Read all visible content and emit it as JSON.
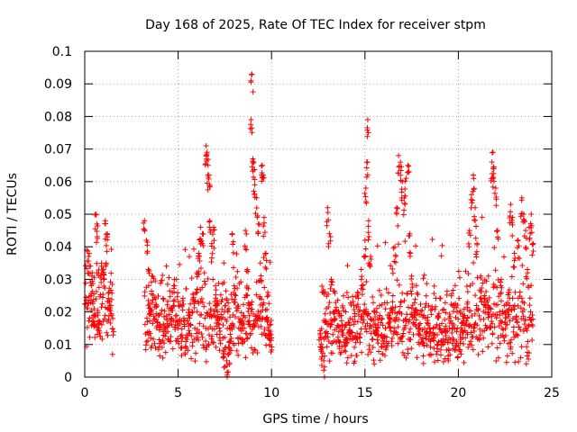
{
  "chart_data": {
    "type": "scatter",
    "title": "Day 168 of 2025, Rate Of TEC Index for receiver stpm",
    "xlabel": "GPS time / hours",
    "ylabel": "ROTI / TECUs",
    "xlim": [
      0,
      25
    ],
    "ylim": [
      0,
      0.1
    ],
    "x_ticks": [
      0,
      5,
      10,
      15,
      20,
      25
    ],
    "y_ticks": [
      0,
      0.01,
      0.02,
      0.03,
      0.04,
      0.05,
      0.06,
      0.07,
      0.08,
      0.09,
      0.1
    ],
    "grid": true,
    "marker": "+",
    "color": "#ff0000",
    "series": [
      {
        "name": "ROTI",
        "segments": [
          {
            "start": 0.0,
            "end": 1.5,
            "level": 0.022
          },
          {
            "start": 3.2,
            "end": 10.0,
            "level": 0.017
          },
          {
            "start": 12.6,
            "end": 24.0,
            "level": 0.016
          }
        ],
        "points": [
          [
            0.1,
            0.039
          ],
          [
            0.2,
            0.037
          ],
          [
            0.3,
            0.029
          ],
          [
            0.4,
            0.032
          ],
          [
            0.5,
            0.021
          ],
          [
            0.6,
            0.05
          ],
          [
            0.65,
            0.047
          ],
          [
            0.7,
            0.019
          ],
          [
            0.8,
            0.017
          ],
          [
            0.9,
            0.035
          ],
          [
            1.0,
            0.033
          ],
          [
            1.1,
            0.048
          ],
          [
            1.2,
            0.044
          ],
          [
            1.3,
            0.026
          ],
          [
            1.4,
            0.022
          ],
          [
            1.5,
            0.018
          ],
          [
            3.2,
            0.048
          ],
          [
            3.3,
            0.042
          ],
          [
            3.4,
            0.033
          ],
          [
            3.5,
            0.021
          ],
          [
            3.6,
            0.031
          ],
          [
            3.8,
            0.024
          ],
          [
            4.0,
            0.016
          ],
          [
            4.2,
            0.014
          ],
          [
            4.4,
            0.018
          ],
          [
            4.6,
            0.021
          ],
          [
            4.8,
            0.028
          ],
          [
            5.0,
            0.015
          ],
          [
            5.2,
            0.013
          ],
          [
            5.4,
            0.012
          ],
          [
            5.6,
            0.019
          ],
          [
            5.8,
            0.024
          ],
          [
            6.0,
            0.032
          ],
          [
            6.1,
            0.038
          ],
          [
            6.2,
            0.046
          ],
          [
            6.3,
            0.044
          ],
          [
            6.5,
            0.071
          ],
          [
            6.55,
            0.069
          ],
          [
            6.6,
            0.065
          ],
          [
            6.65,
            0.062
          ],
          [
            6.7,
            0.048
          ],
          [
            6.8,
            0.041
          ],
          [
            6.9,
            0.046
          ],
          [
            7.0,
            0.028
          ],
          [
            7.1,
            0.022
          ],
          [
            7.2,
            0.018
          ],
          [
            7.4,
            0.012
          ],
          [
            7.5,
            0.009
          ],
          [
            7.6,
            0.005
          ],
          [
            7.7,
            0.007
          ],
          [
            7.8,
            0.011
          ],
          [
            7.9,
            0.044
          ],
          [
            8.0,
            0.028
          ],
          [
            8.2,
            0.012
          ],
          [
            8.4,
            0.016
          ],
          [
            8.6,
            0.045
          ],
          [
            8.7,
            0.033
          ],
          [
            8.8,
            0.022
          ],
          [
            8.9,
            0.079
          ],
          [
            8.95,
            0.093
          ],
          [
            9.0,
            0.067
          ],
          [
            9.05,
            0.066
          ],
          [
            9.1,
            0.059
          ],
          [
            9.2,
            0.055
          ],
          [
            9.3,
            0.047
          ],
          [
            9.4,
            0.035
          ],
          [
            9.5,
            0.065
          ],
          [
            9.55,
            0.062
          ],
          [
            9.6,
            0.049
          ],
          [
            9.7,
            0.038
          ],
          [
            9.8,
            0.026
          ],
          [
            9.9,
            0.016
          ],
          [
            10.0,
            0.012
          ],
          [
            12.6,
            0.013
          ],
          [
            12.7,
            0.009
          ],
          [
            12.8,
            0.005
          ],
          [
            12.9,
            0.017
          ],
          [
            13.0,
            0.052
          ],
          [
            13.1,
            0.044
          ],
          [
            13.2,
            0.03
          ],
          [
            13.4,
            0.02
          ],
          [
            13.6,
            0.014
          ],
          [
            13.8,
            0.016
          ],
          [
            14.0,
            0.012
          ],
          [
            14.2,
            0.018
          ],
          [
            14.4,
            0.022
          ],
          [
            14.6,
            0.026
          ],
          [
            14.8,
            0.033
          ],
          [
            15.0,
            0.042
          ],
          [
            15.05,
            0.058
          ],
          [
            15.1,
            0.066
          ],
          [
            15.15,
            0.079
          ],
          [
            15.2,
            0.048
          ],
          [
            15.3,
            0.037
          ],
          [
            15.5,
            0.02
          ],
          [
            15.7,
            0.016
          ],
          [
            15.9,
            0.013
          ],
          [
            16.1,
            0.015
          ],
          [
            16.3,
            0.019
          ],
          [
            16.5,
            0.025
          ],
          [
            16.6,
            0.04
          ],
          [
            16.7,
            0.052
          ],
          [
            16.8,
            0.068
          ],
          [
            16.9,
            0.066
          ],
          [
            17.0,
            0.06
          ],
          [
            17.1,
            0.055
          ],
          [
            17.2,
            0.061
          ],
          [
            17.3,
            0.065
          ],
          [
            17.4,
            0.044
          ],
          [
            17.5,
            0.031
          ],
          [
            17.7,
            0.02
          ],
          [
            17.9,
            0.016
          ],
          [
            18.1,
            0.012
          ],
          [
            18.3,
            0.014
          ],
          [
            18.5,
            0.011
          ],
          [
            18.7,
            0.013
          ],
          [
            18.9,
            0.01
          ],
          [
            19.1,
            0.011
          ],
          [
            19.3,
            0.014
          ],
          [
            19.5,
            0.012
          ],
          [
            19.7,
            0.015
          ],
          [
            19.9,
            0.011
          ],
          [
            20.1,
            0.013
          ],
          [
            20.3,
            0.018
          ],
          [
            20.5,
            0.023
          ],
          [
            20.6,
            0.045
          ],
          [
            20.7,
            0.056
          ],
          [
            20.8,
            0.062
          ],
          [
            20.9,
            0.052
          ],
          [
            21.0,
            0.041
          ],
          [
            21.2,
            0.031
          ],
          [
            21.4,
            0.025
          ],
          [
            21.6,
            0.022
          ],
          [
            21.8,
            0.066
          ],
          [
            21.85,
            0.069
          ],
          [
            21.9,
            0.064
          ],
          [
            22.0,
            0.058
          ],
          [
            22.1,
            0.045
          ],
          [
            22.3,
            0.03
          ],
          [
            22.5,
            0.02
          ],
          [
            22.7,
            0.026
          ],
          [
            22.8,
            0.053
          ],
          [
            22.9,
            0.049
          ],
          [
            23.0,
            0.038
          ],
          [
            23.2,
            0.042
          ],
          [
            23.4,
            0.055
          ],
          [
            23.5,
            0.05
          ],
          [
            23.6,
            0.045
          ],
          [
            23.7,
            0.033
          ],
          [
            23.8,
            0.046
          ],
          [
            23.9,
            0.05
          ],
          [
            24.0,
            0.041
          ]
        ]
      }
    ]
  }
}
